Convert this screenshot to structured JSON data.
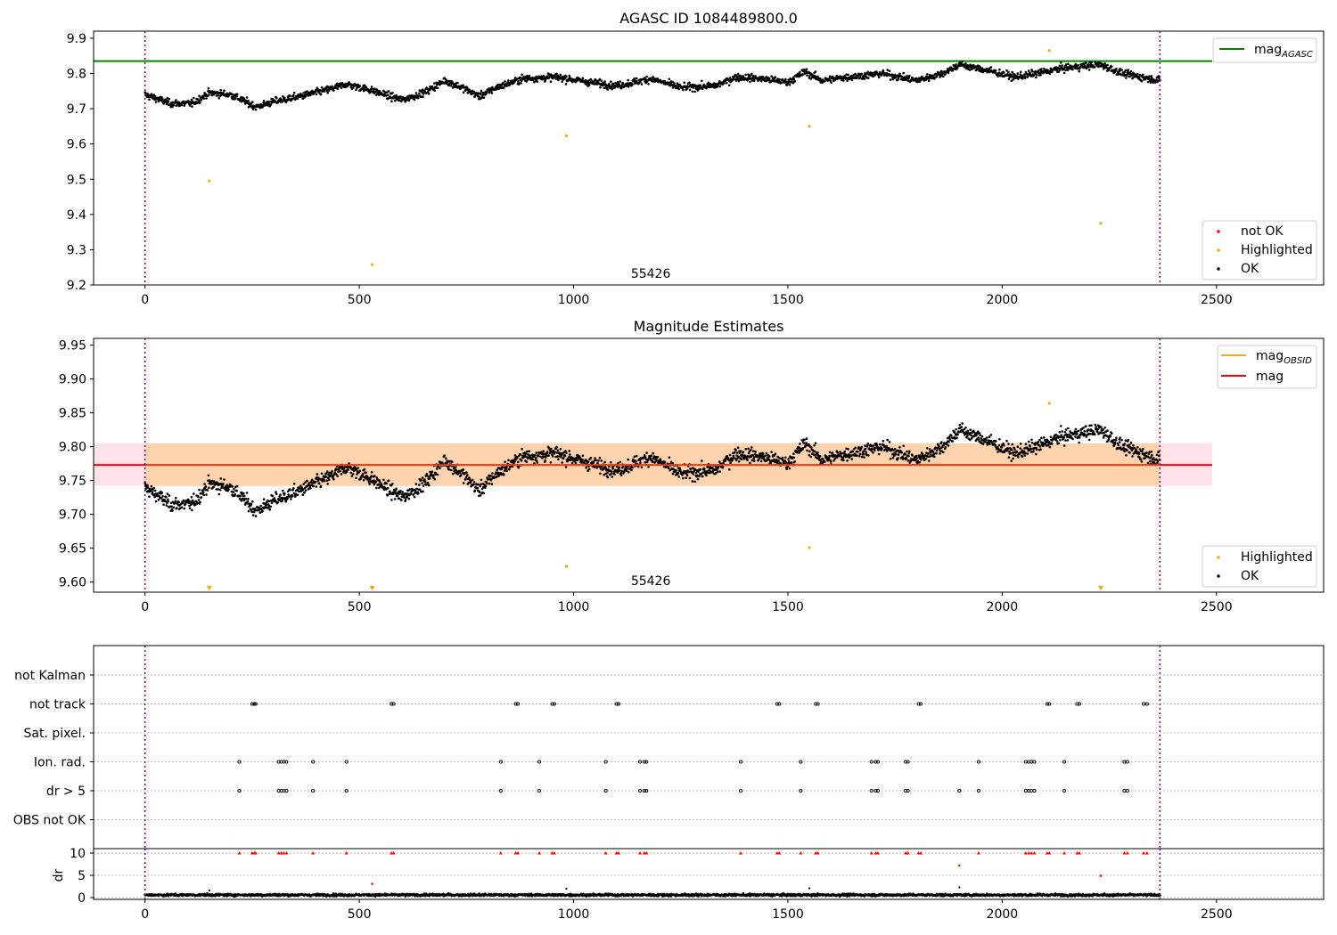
{
  "chart_data": [
    {
      "type": "scatter",
      "title": "AGASC ID 1084489800.0",
      "xlim": [
        -120,
        2750
      ],
      "ylim": [
        9.2,
        9.92
      ],
      "x_ticks": [
        0,
        500,
        1000,
        1500,
        2000,
        2500
      ],
      "y_ticks": [
        9.2,
        9.3,
        9.4,
        9.5,
        9.6,
        9.7,
        9.8,
        9.9
      ],
      "y_tick_decimals": 1,
      "annotation": "55426",
      "vlines": [
        0,
        2368
      ],
      "mag_agasc": 9.835,
      "legend_lines": [
        {
          "label": "mag",
          "sub": "AGASC",
          "color": "#008000"
        }
      ],
      "legend_markers": [
        {
          "label": "not OK",
          "color": "#ff0000"
        },
        {
          "label": "Highlighted",
          "color": "#ffa500"
        },
        {
          "label": "OK",
          "color": "#000000"
        }
      ],
      "series": [
        {
          "name": "OK",
          "color": "#000000",
          "x_range": [
            0,
            2368
          ],
          "n_points": 2400,
          "mean_curve": [
            [
              0,
              9.74
            ],
            [
              60,
              9.715
            ],
            [
              110,
              9.715
            ],
            [
              150,
              9.745
            ],
            [
              200,
              9.74
            ],
            [
              260,
              9.705
            ],
            [
              300,
              9.72
            ],
            [
              360,
              9.735
            ],
            [
              430,
              9.755
            ],
            [
              470,
              9.77
            ],
            [
              520,
              9.755
            ],
            [
              600,
              9.725
            ],
            [
              650,
              9.745
            ],
            [
              700,
              9.78
            ],
            [
              740,
              9.76
            ],
            [
              780,
              9.735
            ],
            [
              820,
              9.76
            ],
            [
              880,
              9.785
            ],
            [
              960,
              9.79
            ],
            [
              1040,
              9.775
            ],
            [
              1100,
              9.765
            ],
            [
              1180,
              9.785
            ],
            [
              1250,
              9.76
            ],
            [
              1330,
              9.765
            ],
            [
              1380,
              9.79
            ],
            [
              1440,
              9.785
            ],
            [
              1500,
              9.775
            ],
            [
              1540,
              9.805
            ],
            [
              1580,
              9.78
            ],
            [
              1640,
              9.79
            ],
            [
              1720,
              9.8
            ],
            [
              1800,
              9.78
            ],
            [
              1860,
              9.8
            ],
            [
              1900,
              9.825
            ],
            [
              1960,
              9.81
            ],
            [
              2030,
              9.79
            ],
            [
              2080,
              9.8
            ],
            [
              2140,
              9.815
            ],
            [
              2230,
              9.825
            ],
            [
              2280,
              9.8
            ],
            [
              2368,
              9.78
            ]
          ],
          "noise": 0.013
        },
        {
          "name": "Highlighted",
          "color": "#ffa500",
          "points": [
            [
              150,
              9.495
            ],
            [
              530,
              9.258
            ],
            [
              983,
              9.623
            ],
            [
              1550,
              9.65
            ],
            [
              2110,
              9.865
            ],
            [
              2230,
              9.375
            ]
          ]
        }
      ]
    },
    {
      "type": "scatter",
      "title": "Magnitude Estimates",
      "xlim": [
        -120,
        2750
      ],
      "ylim": [
        9.585,
        9.96
      ],
      "x_ticks": [
        0,
        500,
        1000,
        1500,
        2000,
        2500
      ],
      "y_ticks": [
        9.6,
        9.65,
        9.7,
        9.75,
        9.8,
        9.85,
        9.9,
        9.95
      ],
      "y_tick_decimals": 2,
      "annotation": "55426",
      "vlines": [
        0,
        2368
      ],
      "mag": 9.773,
      "band_outer": [
        9.742,
        9.805
      ],
      "band_inner": [
        9.742,
        9.805
      ],
      "band_inner_x": [
        0,
        2368
      ],
      "legend_lines": [
        {
          "label": "mag",
          "sub": "OBSID",
          "color": "#ffa500"
        },
        {
          "label": "mag",
          "sub": "",
          "color": "#ff0000"
        }
      ],
      "legend_markers": [
        {
          "label": "Highlighted",
          "color": "#ffa500"
        },
        {
          "label": "OK",
          "color": "#000000"
        }
      ],
      "series": [
        {
          "name": "Highlighted",
          "color": "#ffa500",
          "points": [
            [
              983,
              9.623
            ],
            [
              1550,
              9.651
            ],
            [
              2110,
              9.864
            ]
          ],
          "offscale_points": [
            150,
            530,
            2230
          ]
        }
      ]
    },
    {
      "type": "scatter",
      "title": "",
      "xlim": [
        -120,
        2750
      ],
      "categories": [
        "not Kalman",
        "not track",
        "Sat. pixel.",
        "Ion. rad.",
        "dr > 5",
        "OBS not OK"
      ],
      "flags": {
        "not track": [
          250,
          255,
          258,
          575,
          580,
          865,
          870,
          950,
          955,
          1100,
          1105,
          1475,
          1480,
          1565,
          1570,
          1805,
          1810,
          2105,
          2110,
          2175,
          2180,
          2330,
          2338
        ],
        "Ion. rad.": [
          220,
          312,
          318,
          324,
          330,
          392,
          470,
          830,
          920,
          1075,
          1155,
          1165,
          1170,
          1390,
          1530,
          1695,
          1705,
          1710,
          1775,
          1780,
          1945,
          2055,
          2062,
          2068,
          2075,
          2145,
          2285,
          2292
        ],
        "dr > 5": [
          220,
          312,
          318,
          324,
          330,
          392,
          470,
          830,
          920,
          1075,
          1155,
          1165,
          1170,
          1390,
          1530,
          1695,
          1705,
          1710,
          1775,
          1780,
          1900,
          1945,
          2055,
          2062,
          2068,
          2075,
          2145,
          2285,
          2292
        ]
      }
    },
    {
      "type": "scatter",
      "title": "",
      "ylabel": "dr",
      "xlim": [
        -120,
        2750
      ],
      "ylim": [
        0,
        10
      ],
      "x_ticks": [
        0,
        500,
        1000,
        1500,
        2000,
        2500
      ],
      "y_ticks": [
        0,
        5,
        10
      ],
      "vlines": [
        0,
        2368
      ],
      "series": [
        {
          "name": "OK",
          "color": "#000000",
          "x_range": [
            0,
            2368
          ],
          "n_points": 2400,
          "baseline": 0.6,
          "noise": 0.3
        },
        {
          "name": "not OK",
          "color": "#ff0000",
          "capped_x": [
            220,
            250,
            255,
            258,
            312,
            318,
            324,
            330,
            392,
            470,
            575,
            580,
            830,
            865,
            870,
            920,
            950,
            955,
            1075,
            1100,
            1105,
            1155,
            1165,
            1170,
            1390,
            1475,
            1480,
            1530,
            1565,
            1570,
            1695,
            1705,
            1710,
            1775,
            1780,
            1805,
            1810,
            1945,
            2055,
            2062,
            2068,
            2075,
            2105,
            2110,
            2145,
            2175,
            2180,
            2285,
            2292,
            2330,
            2338
          ],
          "points": [
            [
              530,
              3.1
            ],
            [
              1900,
              7.2
            ],
            [
              2230,
              4.9
            ]
          ]
        },
        {
          "name": "OK outliers",
          "color": "#000000",
          "points": [
            [
              983,
              2.0
            ],
            [
              1550,
              2.1
            ],
            [
              1900,
              2.3
            ],
            [
              150,
              1.6
            ]
          ]
        }
      ]
    }
  ]
}
